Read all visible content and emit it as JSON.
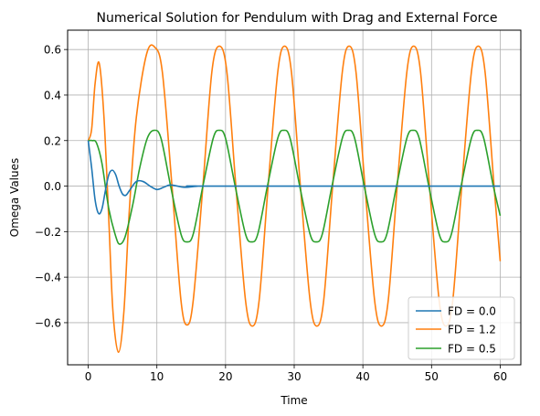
{
  "chart_data": {
    "type": "line",
    "title": "Numerical Solution for Pendulum with Drag and External Force",
    "xlabel": "Time",
    "ylabel": "Omega Values",
    "xlim": [
      -3,
      63
    ],
    "ylim": [
      -0.785,
      0.685
    ],
    "xticks": [
      0,
      10,
      20,
      30,
      40,
      50,
      60
    ],
    "yticks": [
      -0.6,
      -0.4,
      -0.2,
      0.0,
      0.2,
      0.4,
      0.6
    ],
    "xtick_labels": [
      "0",
      "10",
      "20",
      "30",
      "40",
      "50",
      "60"
    ],
    "ytick_labels": [
      "−0.6",
      "−0.4",
      "−0.2",
      "0.0",
      "0.2",
      "0.4",
      "0.6"
    ],
    "grid": true,
    "legend_position": "lower-right",
    "t_max": 60,
    "series": [
      {
        "name": "FD = 0.0",
        "label": "FD = 0.0",
        "color": "#1f77b4"
      },
      {
        "name": "FD = 1.2",
        "label": "FD = 1.2",
        "color": "#ff7f0e"
      },
      {
        "name": "FD = 0.5",
        "label": "FD = 0.5",
        "color": "#2ca02c"
      }
    ],
    "samples": {
      "FD = 0.0": [
        [
          0,
          0.2
        ],
        [
          0.5,
          0.08
        ],
        [
          1.0,
          -0.06
        ],
        [
          1.5,
          -0.12
        ],
        [
          2.0,
          -0.1
        ],
        [
          2.5,
          -0.02
        ],
        [
          3.0,
          0.05
        ],
        [
          3.5,
          0.07
        ],
        [
          4.0,
          0.05
        ],
        [
          4.5,
          0.0
        ],
        [
          5.0,
          -0.035
        ],
        [
          5.5,
          -0.04
        ],
        [
          6.0,
          -0.02
        ],
        [
          7.0,
          0.02
        ],
        [
          8.0,
          0.02
        ],
        [
          9.0,
          0.0
        ],
        [
          10.0,
          -0.015
        ],
        [
          11.0,
          -0.005
        ],
        [
          12.0,
          0.005
        ],
        [
          14.0,
          -0.005
        ],
        [
          16.0,
          0.0
        ],
        [
          18.0,
          0.0
        ],
        [
          60.0,
          0.0
        ]
      ],
      "FD = 1.2": [
        [
          0,
          0.2
        ],
        [
          0.5,
          0.25
        ],
        [
          1.0,
          0.45
        ],
        [
          1.6,
          0.54
        ],
        [
          2.3,
          0.3
        ],
        [
          3.0,
          -0.15
        ],
        [
          3.6,
          -0.55
        ],
        [
          4.4,
          -0.73
        ],
        [
          5.2,
          -0.55
        ],
        [
          6.0,
          -0.1
        ],
        [
          7.0,
          0.3
        ],
        [
          8.5,
          0.58
        ],
        [
          9.7,
          0.61
        ],
        [
          10.8,
          0.5
        ],
        [
          12.2,
          0.0
        ],
        [
          13.5,
          -0.5
        ],
        [
          14.4,
          -0.61
        ],
        [
          15.3,
          -0.5
        ],
        [
          16.7,
          0.0
        ],
        [
          18.0,
          0.5
        ],
        [
          19.1,
          0.615
        ],
        [
          20.2,
          0.5
        ],
        [
          21.5,
          0.0
        ],
        [
          22.9,
          -0.5
        ],
        [
          23.9,
          -0.615
        ],
        [
          24.9,
          -0.5
        ],
        [
          26.2,
          0.0
        ],
        [
          27.6,
          0.5
        ],
        [
          28.6,
          0.615
        ],
        [
          29.6,
          0.5
        ],
        [
          30.9,
          0.0
        ],
        [
          32.3,
          -0.5
        ],
        [
          33.3,
          -0.615
        ],
        [
          34.3,
          -0.5
        ],
        [
          35.6,
          0.0
        ],
        [
          37.0,
          0.5
        ],
        [
          38.0,
          0.615
        ],
        [
          39.0,
          0.5
        ],
        [
          40.3,
          0.0
        ],
        [
          41.7,
          -0.5
        ],
        [
          42.7,
          -0.615
        ],
        [
          43.7,
          -0.5
        ],
        [
          45.0,
          0.0
        ],
        [
          46.4,
          0.5
        ],
        [
          47.4,
          0.615
        ],
        [
          48.4,
          0.5
        ],
        [
          49.7,
          0.0
        ],
        [
          51.1,
          -0.5
        ],
        [
          52.1,
          -0.615
        ],
        [
          53.1,
          -0.5
        ],
        [
          54.4,
          0.0
        ],
        [
          55.8,
          0.5
        ],
        [
          56.8,
          0.615
        ],
        [
          57.8,
          0.5
        ],
        [
          59.1,
          0.0
        ],
        [
          60.0,
          -0.33
        ]
      ],
      "FD = 0.5": [
        [
          0,
          0.2
        ],
        [
          0.6,
          0.2
        ],
        [
          1.2,
          0.19
        ],
        [
          2.0,
          0.1
        ],
        [
          3.0,
          -0.1
        ],
        [
          4.0,
          -0.22
        ],
        [
          4.6,
          -0.255
        ],
        [
          5.4,
          -0.22
        ],
        [
          6.5,
          -0.08
        ],
        [
          7.5,
          0.08
        ],
        [
          8.6,
          0.21
        ],
        [
          9.6,
          0.245
        ],
        [
          10.6,
          0.21
        ],
        [
          12.0,
          0.0
        ],
        [
          13.5,
          -0.21
        ],
        [
          14.4,
          -0.245
        ],
        [
          15.3,
          -0.21
        ],
        [
          16.7,
          0.0
        ],
        [
          18.2,
          0.21
        ],
        [
          19.1,
          0.245
        ],
        [
          20.0,
          0.21
        ],
        [
          21.4,
          0.0
        ],
        [
          22.9,
          -0.21
        ],
        [
          23.8,
          -0.245
        ],
        [
          24.7,
          -0.21
        ],
        [
          26.1,
          0.0
        ],
        [
          27.6,
          0.21
        ],
        [
          28.5,
          0.245
        ],
        [
          29.4,
          0.21
        ],
        [
          30.8,
          0.0
        ],
        [
          32.3,
          -0.21
        ],
        [
          33.2,
          -0.245
        ],
        [
          34.1,
          -0.21
        ],
        [
          35.5,
          0.0
        ],
        [
          37.0,
          0.21
        ],
        [
          37.9,
          0.245
        ],
        [
          38.8,
          0.21
        ],
        [
          40.2,
          0.0
        ],
        [
          41.7,
          -0.21
        ],
        [
          42.6,
          -0.245
        ],
        [
          43.5,
          -0.21
        ],
        [
          44.9,
          0.0
        ],
        [
          46.4,
          0.21
        ],
        [
          47.3,
          0.245
        ],
        [
          48.2,
          0.21
        ],
        [
          49.6,
          0.0
        ],
        [
          51.1,
          -0.21
        ],
        [
          52.0,
          -0.245
        ],
        [
          52.9,
          -0.21
        ],
        [
          54.3,
          0.0
        ],
        [
          55.8,
          0.21
        ],
        [
          56.7,
          0.245
        ],
        [
          57.6,
          0.21
        ],
        [
          59.0,
          0.0
        ],
        [
          60.0,
          -0.13
        ]
      ]
    }
  }
}
